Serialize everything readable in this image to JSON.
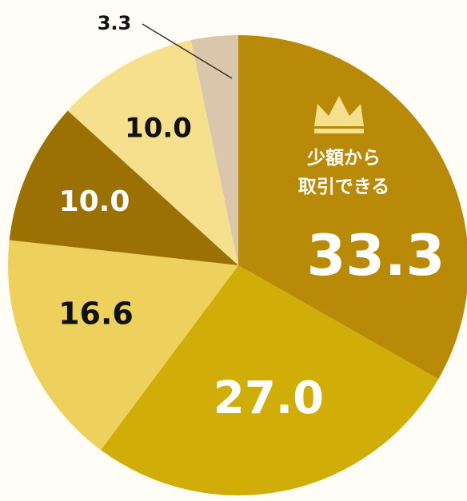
{
  "chart_data": {
    "type": "pie",
    "categories": [
      "少額から\n取引できる",
      null,
      null,
      null,
      null,
      null
    ],
    "values": [
      33.3,
      27.0,
      16.6,
      10.0,
      10.0,
      3.3
    ],
    "value_labels": [
      "33.3",
      "27.0",
      "16.6",
      "10.0",
      "10.0",
      "3.3"
    ],
    "colors": [
      "#b98a08",
      "#d0ae07",
      "#eed15c",
      "#9a7102",
      "#f6e08d",
      "#d9c6ab"
    ]
  }
}
